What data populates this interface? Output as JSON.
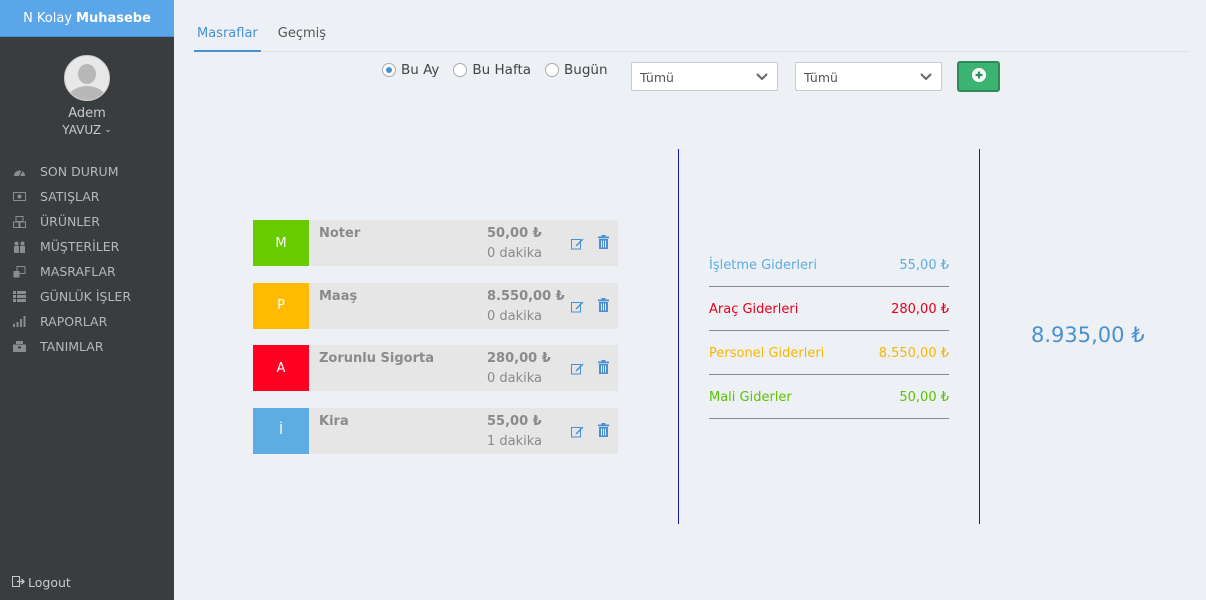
{
  "app": {
    "brand_prefix": "N Kolay",
    "brand_bold": "Muhasebe"
  },
  "user": {
    "first_name": "Adem",
    "last_name": "YAVUZ"
  },
  "menu": [
    {
      "label": "SON DURUM",
      "icon": "dashboard-icon"
    },
    {
      "label": "SATIŞLAR",
      "icon": "money-icon"
    },
    {
      "label": "ÜRÜNLER",
      "icon": "box-icon"
    },
    {
      "label": "MÜŞTERİLER",
      "icon": "users-icon"
    },
    {
      "label": "MASRAFLAR",
      "icon": "expenses-icon"
    },
    {
      "label": "GÜNLÜK İŞLER",
      "icon": "list-icon"
    },
    {
      "label": "RAPORLAR",
      "icon": "chart-icon"
    },
    {
      "label": "TANIMLAR",
      "icon": "settings-box-icon"
    }
  ],
  "logout_label": "Logout",
  "tabs": [
    {
      "label": "Masraflar",
      "active": true
    },
    {
      "label": "Geçmiş",
      "active": false
    }
  ],
  "filters": {
    "radios": [
      {
        "label": "Bu Ay",
        "checked": true
      },
      {
        "label": "Bu Hafta",
        "checked": false
      },
      {
        "label": "Bugün",
        "checked": false
      }
    ],
    "select1": "Tümü",
    "select2": "Tümü"
  },
  "expenses": [
    {
      "letter": "M",
      "color": "#66cc00",
      "name": "Noter",
      "amount": "50,00 ₺",
      "time": "0 dakika"
    },
    {
      "letter": "P",
      "color": "#ffbb00",
      "name": "Maaş",
      "amount": "8.550,00 ₺",
      "time": "0 dakika"
    },
    {
      "letter": "A",
      "color": "#ff0022",
      "name": "Zorunlu Sigorta",
      "amount": "280,00 ₺",
      "time": "0 dakika"
    },
    {
      "letter": "İ",
      "color": "#5dade2",
      "name": "Kira",
      "amount": "55,00 ₺",
      "time": "1 dakika"
    }
  ],
  "categories": [
    {
      "name": "İşletme Giderleri",
      "amount": "55,00 ₺",
      "color": "#5dade2"
    },
    {
      "name": "Araç Giderleri",
      "amount": "280,00 ₺",
      "color": "#e8001c"
    },
    {
      "name": "Personel Giderleri",
      "amount": "8.550,00 ₺",
      "color": "#f5b800"
    },
    {
      "name": "Mali Giderler",
      "amount": "50,00 ₺",
      "color": "#5cc400"
    }
  ],
  "total": "8.935,00 ₺"
}
